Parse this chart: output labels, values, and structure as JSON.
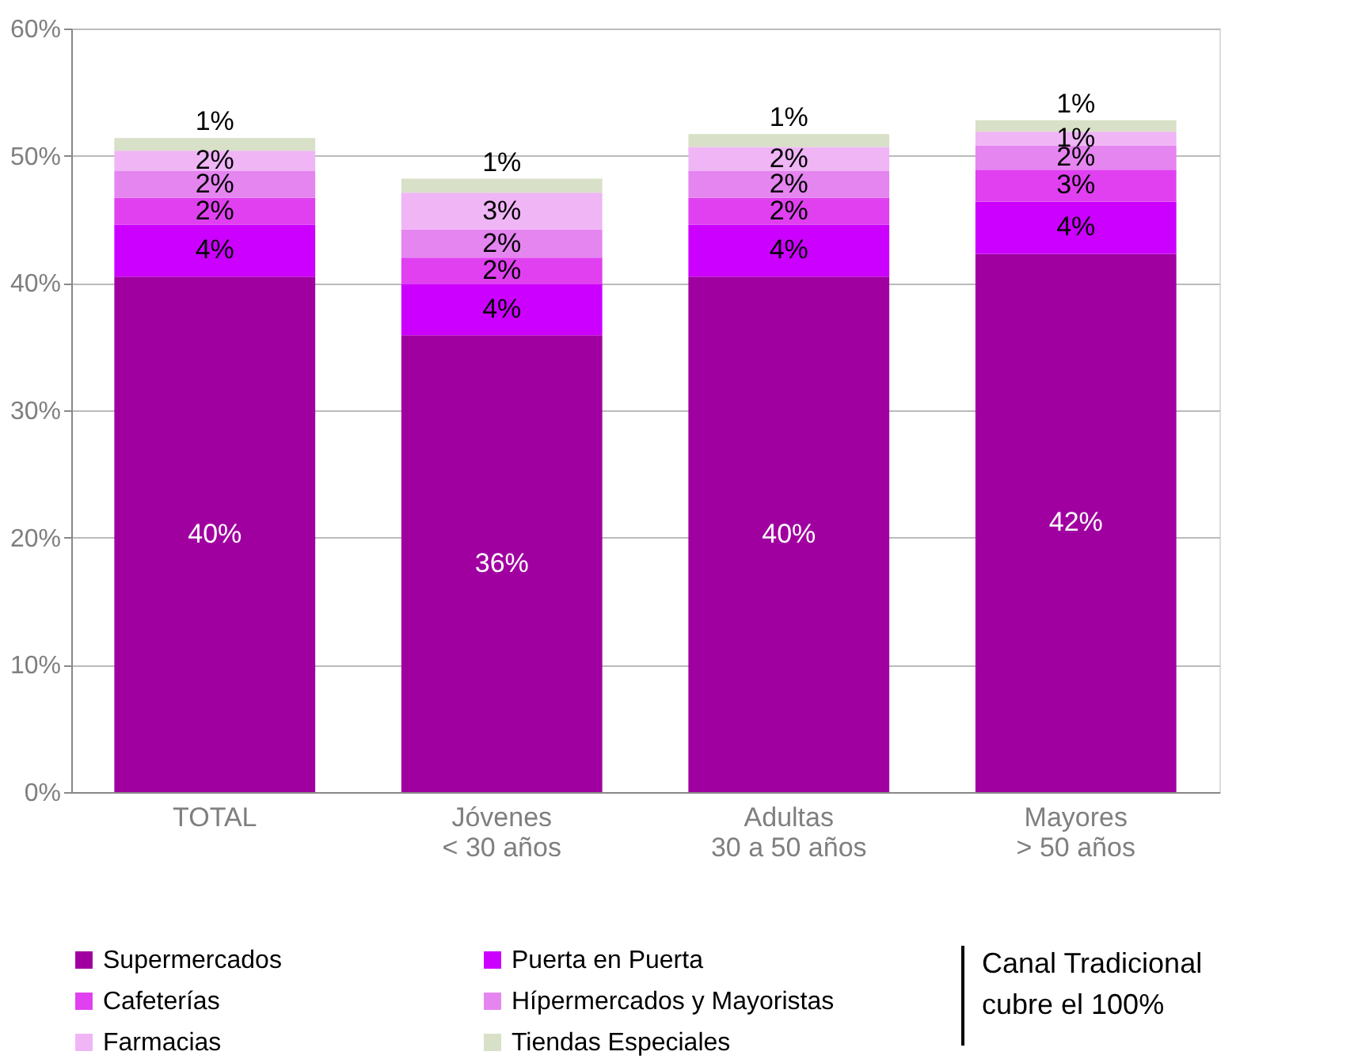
{
  "chart_data": {
    "type": "bar",
    "stacked": true,
    "categories": [
      "TOTAL",
      "Jóvenes\n< 30 años",
      "Adultas\n30 a 50 años",
      "Mayores\n> 50 años"
    ],
    "series": [
      {
        "name": "Supermercados",
        "color": "#a000a0",
        "values": [
          40.5,
          35.9,
          40.5,
          42.3
        ],
        "value_labels": [
          "40%",
          "36%",
          "40%",
          "42%"
        ]
      },
      {
        "name": "Puerta en Puerta",
        "color": "#cc00ff",
        "values": [
          4.1,
          4.0,
          4.1,
          4.1
        ],
        "value_labels": [
          "4%",
          "4%",
          "4%",
          "4%"
        ]
      },
      {
        "name": "Cafeterías",
        "color": "#e040f0",
        "values": [
          2.1,
          2.1,
          2.1,
          2.5
        ],
        "value_labels": [
          "2%",
          "2%",
          "2%",
          "3%"
        ]
      },
      {
        "name": "Hípermercados y Mayoristas",
        "color": "#e585f0",
        "values": [
          2.1,
          2.2,
          2.1,
          1.9
        ],
        "value_labels": [
          "2%",
          "2%",
          "2%",
          "2%"
        ]
      },
      {
        "name": "Farmacias",
        "color": "#efb5f5",
        "values": [
          1.6,
          2.9,
          1.9,
          1.1
        ],
        "value_labels": [
          "2%",
          "3%",
          "2%",
          "1%"
        ]
      },
      {
        "name": "Tiendas Especiales",
        "color": "#d8e0c8",
        "values": [
          1.0,
          1.1,
          1.0,
          0.9
        ],
        "value_labels": [
          "1%",
          "1%",
          "1%",
          "1%"
        ]
      }
    ],
    "ylim": [
      0,
      60
    ],
    "yticks": [
      {
        "value": 0,
        "label": "0%"
      },
      {
        "value": 10,
        "label": "10%"
      },
      {
        "value": 20,
        "label": "20%"
      },
      {
        "value": 30,
        "label": "30%"
      },
      {
        "value": 40,
        "label": "40%"
      },
      {
        "value": 50,
        "label": "50%"
      },
      {
        "value": 60,
        "label": "60%"
      }
    ],
    "grid": "y",
    "legend": "bottom",
    "annotations": [
      "Canal Tradicional\ncubre el 100%"
    ]
  }
}
